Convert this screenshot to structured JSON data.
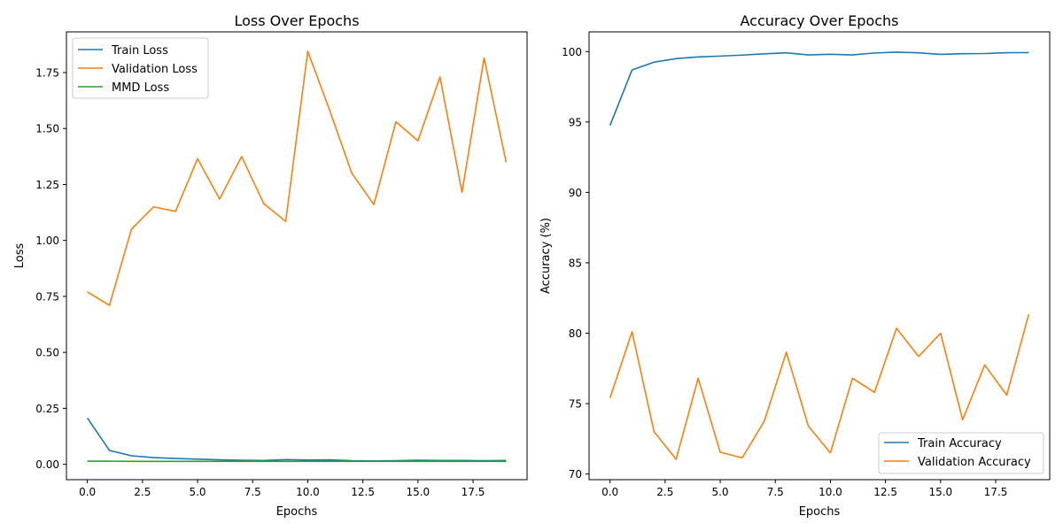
{
  "chart_data": [
    {
      "type": "line",
      "title": "Loss Over Epochs",
      "xlabel": "Epochs",
      "ylabel": "Loss",
      "xlim": [
        -0.95,
        19.95
      ],
      "ylim": [
        -0.0687,
        1.9318
      ],
      "xticks": [
        0.0,
        2.5,
        5.0,
        7.5,
        10.0,
        12.5,
        15.0,
        17.5
      ],
      "xtick_labels": [
        "0.0",
        "2.5",
        "5.0",
        "7.5",
        "10.0",
        "12.5",
        "15.0",
        "17.5"
      ],
      "yticks": [
        0.0,
        0.25,
        0.5,
        0.75,
        1.0,
        1.25,
        1.5,
        1.75
      ],
      "ytick_labels": [
        "0.00",
        "0.25",
        "0.50",
        "0.75",
        "1.00",
        "1.25",
        "1.50",
        "1.75"
      ],
      "grid": false,
      "legend_position": "top-left",
      "x": [
        0,
        1,
        2,
        3,
        4,
        5,
        6,
        7,
        8,
        9,
        10,
        11,
        12,
        13,
        14,
        15,
        16,
        17,
        18,
        19
      ],
      "series": [
        {
          "name": "Train Loss",
          "color": "#1f77b4",
          "values": [
            0.207,
            0.062,
            0.038,
            0.03,
            0.026,
            0.023,
            0.02,
            0.018,
            0.017,
            0.021,
            0.019,
            0.02,
            0.016,
            0.015,
            0.016,
            0.018,
            0.017,
            0.017,
            0.016,
            0.017
          ]
        },
        {
          "name": "Validation Loss",
          "color": "#ff7f0e",
          "values": [
            0.77,
            0.71,
            1.05,
            1.15,
            1.13,
            1.365,
            1.185,
            1.375,
            1.165,
            1.085,
            1.845,
            1.58,
            1.3,
            1.16,
            1.53,
            1.445,
            1.73,
            1.215,
            1.815,
            1.35
          ]
        },
        {
          "name": "MMD Loss",
          "color": "#2ca02c",
          "values": [
            0.014,
            0.014,
            0.013,
            0.013,
            0.013,
            0.013,
            0.013,
            0.013,
            0.013,
            0.013,
            0.013,
            0.013,
            0.013,
            0.013,
            0.013,
            0.013,
            0.013,
            0.013,
            0.013,
            0.013
          ]
        }
      ]
    },
    {
      "type": "line",
      "title": "Accuracy Over Epochs",
      "xlabel": "Epochs",
      "ylabel": "Accuracy (%)",
      "xlim": [
        -0.95,
        19.95
      ],
      "ylim": [
        69.6,
        101.4
      ],
      "xticks": [
        0.0,
        2.5,
        5.0,
        7.5,
        10.0,
        12.5,
        15.0,
        17.5
      ],
      "xtick_labels": [
        "0.0",
        "2.5",
        "5.0",
        "7.5",
        "10.0",
        "12.5",
        "15.0",
        "17.5"
      ],
      "yticks": [
        70,
        75,
        80,
        85,
        90,
        95,
        100
      ],
      "ytick_labels": [
        "70",
        "75",
        "80",
        "85",
        "90",
        "95",
        "100"
      ],
      "grid": false,
      "legend_position": "lower-right",
      "x": [
        0,
        1,
        2,
        3,
        4,
        5,
        6,
        7,
        8,
        9,
        10,
        11,
        12,
        13,
        14,
        15,
        16,
        17,
        18,
        19
      ],
      "series": [
        {
          "name": "Train Accuracy",
          "color": "#1f77b4",
          "values": [
            94.75,
            98.7,
            99.25,
            99.5,
            99.62,
            99.68,
            99.75,
            99.84,
            99.91,
            99.76,
            99.81,
            99.76,
            99.9,
            99.96,
            99.91,
            99.8,
            99.85,
            99.86,
            99.92,
            99.93
          ]
        },
        {
          "name": "Validation Accuracy",
          "color": "#ff7f0e",
          "values": [
            75.4,
            80.1,
            73.0,
            71.05,
            76.8,
            71.55,
            71.15,
            73.75,
            78.65,
            73.4,
            71.5,
            76.8,
            75.8,
            80.35,
            78.35,
            80.0,
            73.85,
            77.75,
            75.6,
            81.35
          ]
        }
      ]
    }
  ]
}
